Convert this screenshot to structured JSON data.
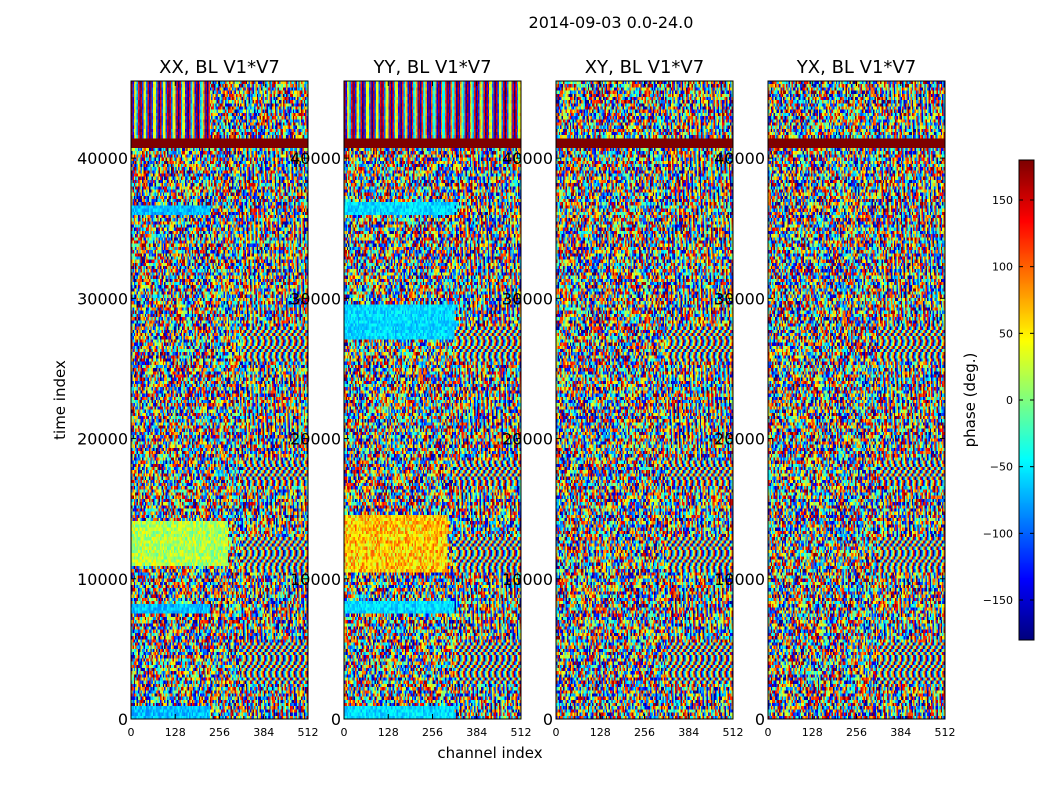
{
  "chart_data": {
    "type": "heatmap",
    "suptitle": "2014-09-03 0.0-24.0",
    "panels": [
      {
        "title": "XX, BL V1*V7",
        "variant": 0
      },
      {
        "title": "YY, BL V1*V7",
        "variant": 1
      },
      {
        "title": "XY, BL V1*V7",
        "variant": 2
      },
      {
        "title": "YX, BL V1*V7",
        "variant": 3
      }
    ],
    "xlabel": "channel index",
    "ylabel": "time index",
    "xlim": [
      0,
      512
    ],
    "ylim": [
      0,
      45500
    ],
    "x_ticks": [
      0,
      128,
      256,
      384,
      512
    ],
    "y_ticks": [
      0,
      10000,
      20000,
      30000,
      40000
    ],
    "colorbar": {
      "label": "phase (deg.)",
      "range": [
        -180,
        180
      ],
      "ticks": [
        -150,
        -100,
        -50,
        0,
        50,
        100,
        150
      ],
      "tick_labels": [
        "−150",
        "−100",
        "−50",
        "0",
        "50",
        "100",
        "150"
      ],
      "colormap": "jet"
    },
    "features": {
      "flagged_band_time_range": [
        40700,
        41500
      ],
      "fringe_channel_start": 320,
      "fringe_bands_time": [
        [
          2500,
          5500
        ],
        [
          10500,
          13000
        ],
        [
          25500,
          28000
        ],
        [
          16500,
          18500
        ]
      ]
    }
  }
}
